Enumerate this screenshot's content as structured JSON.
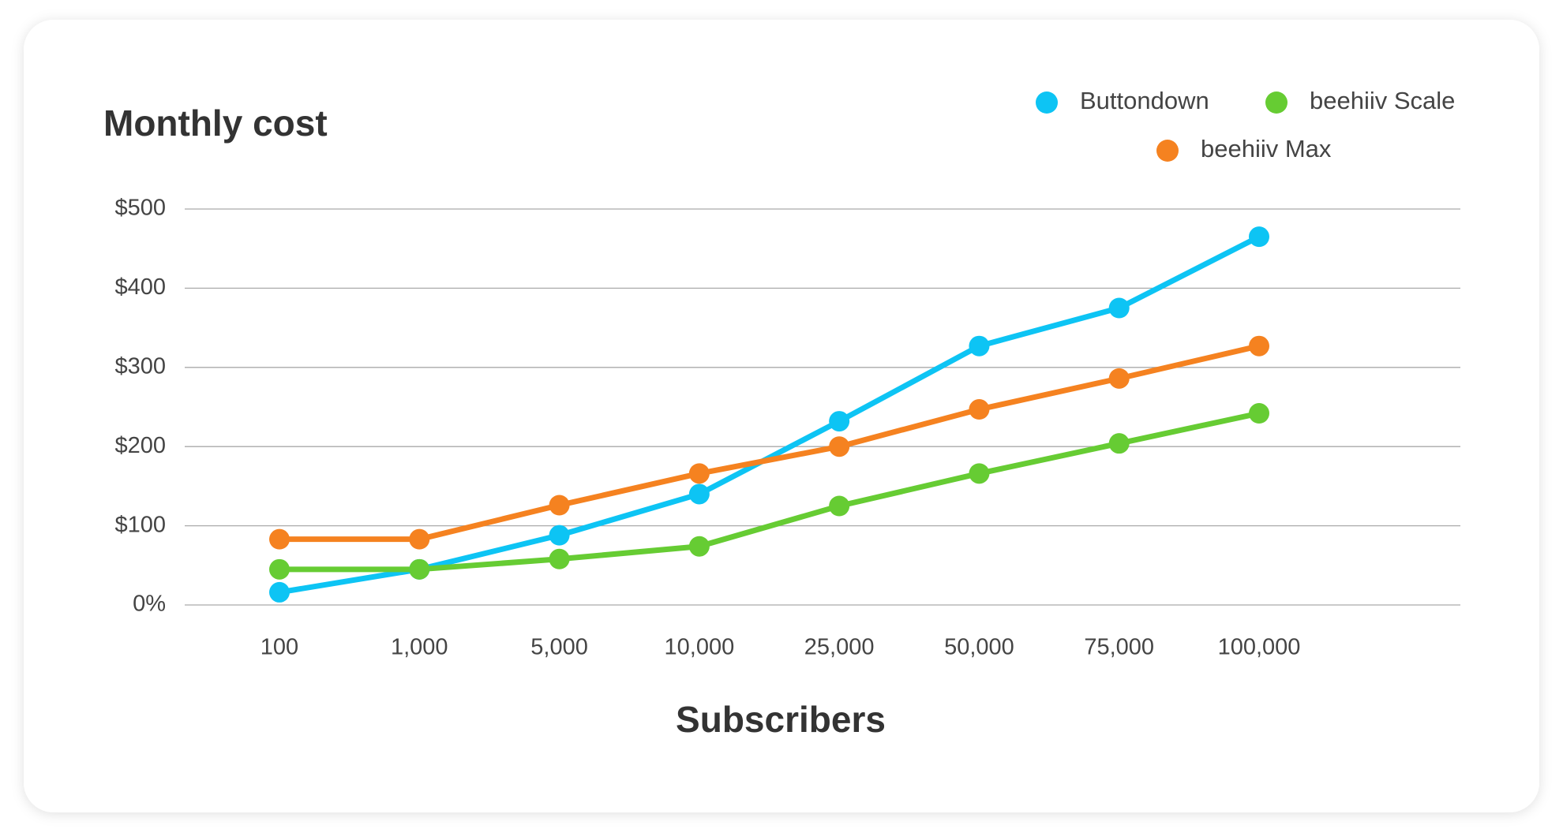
{
  "chart_data": {
    "type": "line",
    "title": "Monthly cost",
    "x_label": "Subscribers",
    "categories": [
      "100",
      "1,000",
      "5,000",
      "10,000",
      "25,000",
      "50,000",
      "75,000",
      "100,000"
    ],
    "series": [
      {
        "name": "Buttondown",
        "color": "#0dc4f4",
        "values": [
          16,
          45,
          88,
          140,
          232,
          327,
          375,
          465
        ]
      },
      {
        "name": "beehiiv Scale",
        "color": "#66cc33",
        "values": [
          45,
          45,
          58,
          74,
          125,
          166,
          204,
          242
        ]
      },
      {
        "name": "beehiiv Max",
        "color": "#f58220",
        "values": [
          83,
          83,
          126,
          166,
          200,
          247,
          286,
          327
        ]
      }
    ],
    "ylim": [
      0,
      500
    ],
    "yticks": [
      {
        "value": 0,
        "label": "0%"
      },
      {
        "value": 100,
        "label": "$100"
      },
      {
        "value": 200,
        "label": "$200"
      },
      {
        "value": 300,
        "label": "$300"
      },
      {
        "value": 400,
        "label": "$400"
      },
      {
        "value": 500,
        "label": "$500"
      }
    ],
    "grid": true
  }
}
